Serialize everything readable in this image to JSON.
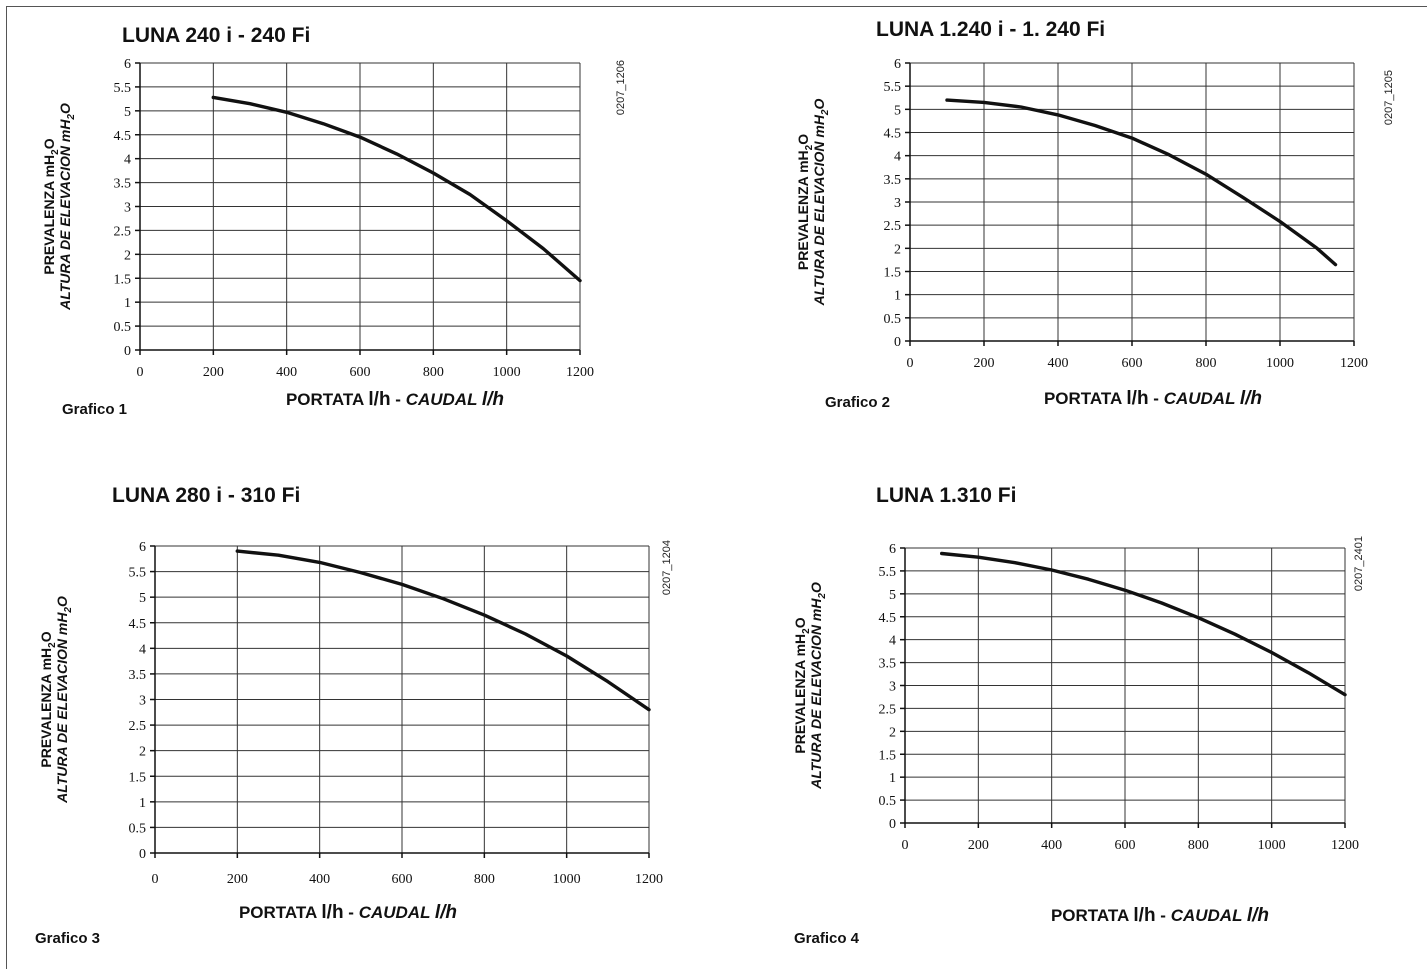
{
  "chart_data": [
    {
      "type": "line",
      "title": "LUNA 240 i - 240 Fi",
      "caption": "Grafico 1",
      "code": "0207_1206",
      "xlabel": {
        "main": "PORTATA ",
        "unit": "l/h",
        "sep": " - ",
        "alt": "CAUDAL ",
        "alt_unit": "l/h"
      },
      "ylabel": {
        "main": "PREVALENZA mH",
        "main_sub": "2",
        "main_end": "O",
        "alt": "ALTURA DE ELEVACION mH",
        "alt_sub": "2",
        "alt_end": "O"
      },
      "xlim": [
        0,
        1200
      ],
      "ylim": [
        0,
        6
      ],
      "xticks": [
        "0",
        "200",
        "400",
        "600",
        "800",
        "1000",
        "1200"
      ],
      "yticks": [
        "0",
        "0.5",
        "1",
        "1.5",
        "2",
        "2.5",
        "3",
        "3.5",
        "4",
        "4.5",
        "5",
        "5.5",
        "6"
      ],
      "grid": true,
      "series": [
        {
          "x": [
            200,
            300,
            400,
            500,
            600,
            700,
            800,
            900,
            1000,
            1100,
            1200
          ],
          "y": [
            5.28,
            5.15,
            4.97,
            4.73,
            4.45,
            4.1,
            3.7,
            3.25,
            2.7,
            2.12,
            1.45
          ]
        }
      ]
    },
    {
      "type": "line",
      "title": "LUNA 1.240 i - 1. 240 Fi",
      "caption": "Grafico 2",
      "code": "0207_1205",
      "xlabel": {
        "main": "PORTATA ",
        "unit": "l/h",
        "sep": " - ",
        "alt": "CAUDAL ",
        "alt_unit": "l/h"
      },
      "ylabel": {
        "main": "PREVALENZA mH",
        "main_sub": "2",
        "main_end": "O",
        "alt": "ALTURA DE ELEVACION mH",
        "alt_sub": "2",
        "alt_end": "O"
      },
      "xlim": [
        0,
        1200
      ],
      "ylim": [
        0,
        6
      ],
      "xticks": [
        "0",
        "200",
        "400",
        "600",
        "800",
        "1000",
        "1200"
      ],
      "yticks": [
        "0",
        "0.5",
        "1",
        "1.5",
        "2",
        "2.5",
        "3",
        "3.5",
        "4",
        "4.5",
        "5",
        "5.5",
        "6"
      ],
      "grid": true,
      "series": [
        {
          "x": [
            100,
            200,
            300,
            400,
            500,
            600,
            700,
            800,
            900,
            1000,
            1100,
            1150
          ],
          "y": [
            5.2,
            5.15,
            5.05,
            4.88,
            4.65,
            4.38,
            4.02,
            3.6,
            3.1,
            2.58,
            2.0,
            1.65
          ]
        }
      ]
    },
    {
      "type": "line",
      "title": "LUNA 280 i - 310 Fi",
      "caption": "Grafico 3",
      "code": "0207_1204",
      "xlabel": {
        "main": "PORTATA ",
        "unit": "l/h",
        "sep": " - ",
        "alt": "CAUDAL ",
        "alt_unit": "l/h"
      },
      "ylabel": {
        "main": "PREVALENZA mH",
        "main_sub": "2",
        "main_end": "O",
        "alt": "ALTURA DE ELEVACION mH",
        "alt_sub": "2",
        "alt_end": "O"
      },
      "xlim": [
        0,
        1200
      ],
      "ylim": [
        0,
        6
      ],
      "xticks": [
        "0",
        "200",
        "400",
        "600",
        "800",
        "1000",
        "1200"
      ],
      "yticks": [
        "0",
        "0.5",
        "1",
        "1.5",
        "2",
        "2.5",
        "3",
        "3.5",
        "4",
        "4.5",
        "5",
        "5.5",
        "6"
      ],
      "grid": true,
      "series": [
        {
          "x": [
            200,
            300,
            400,
            500,
            600,
            700,
            800,
            900,
            1000,
            1100,
            1200
          ],
          "y": [
            5.9,
            5.82,
            5.68,
            5.48,
            5.25,
            4.97,
            4.65,
            4.28,
            3.85,
            3.35,
            2.8
          ]
        }
      ]
    },
    {
      "type": "line",
      "title": "LUNA 1.310 Fi",
      "caption": "Grafico 4",
      "code": "0207_2401",
      "xlabel": {
        "main": "PORTATA ",
        "unit": "l/h",
        "sep": " - ",
        "alt": "CAUDAL ",
        "alt_unit": "l/h"
      },
      "ylabel": {
        "main": "PREVALENZA mH",
        "main_sub": "2",
        "main_end": "O",
        "alt": "ALTURA DE ELEVACION mH",
        "alt_sub": "2",
        "alt_end": "O"
      },
      "xlim": [
        0,
        1200
      ],
      "ylim": [
        0,
        6
      ],
      "xticks": [
        "0",
        "200",
        "400",
        "600",
        "800",
        "1000",
        "1200"
      ],
      "yticks": [
        "0",
        "0.5",
        "1",
        "1.5",
        "2",
        "2.5",
        "3",
        "3.5",
        "4",
        "4.5",
        "5",
        "5.5",
        "6"
      ],
      "grid": true,
      "series": [
        {
          "x": [
            100,
            200,
            300,
            400,
            500,
            600,
            700,
            800,
            900,
            1000,
            1100,
            1200
          ],
          "y": [
            5.88,
            5.8,
            5.68,
            5.52,
            5.32,
            5.08,
            4.8,
            4.48,
            4.12,
            3.72,
            3.28,
            2.8
          ]
        }
      ]
    }
  ]
}
